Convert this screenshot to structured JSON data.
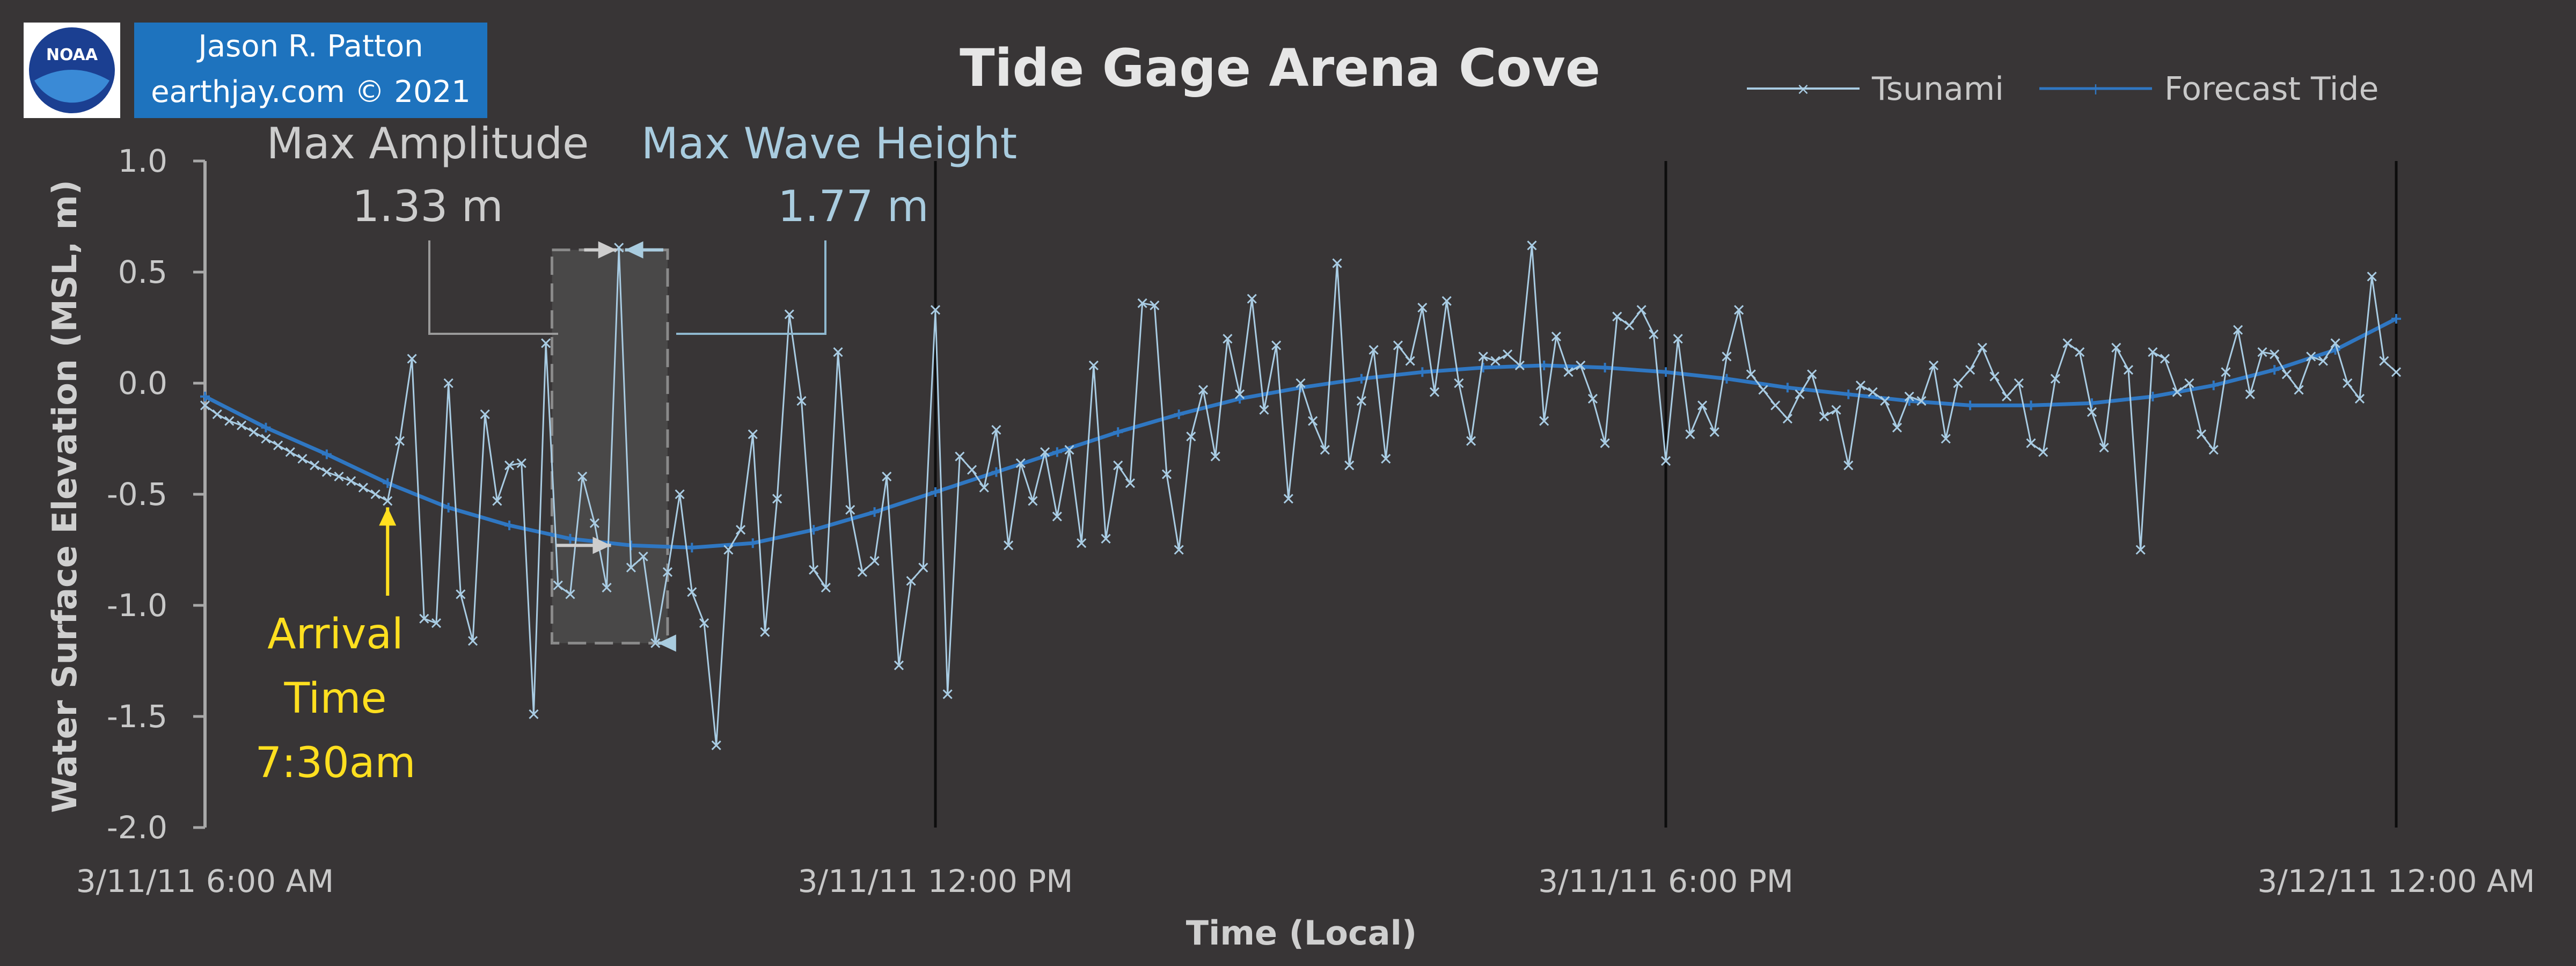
{
  "chart_data": {
    "type": "line",
    "title": "Tide Gage Arena Cove",
    "xlabel": "Time (Local)",
    "ylabel": "Water Surface Elevation (MSL, m)",
    "ylim": [
      -2.0,
      1.0
    ],
    "xlim_hours_from_start": [
      0,
      18
    ],
    "yticks": [
      {
        "value": 1.0,
        "label": "1.0"
      },
      {
        "value": 0.5,
        "label": "0.5"
      },
      {
        "value": 0.0,
        "label": "0.0"
      },
      {
        "value": -0.5,
        "label": "-0.5"
      },
      {
        "value": -1.0,
        "label": "-1.0"
      },
      {
        "value": -1.5,
        "label": "-1.5"
      },
      {
        "value": -2.0,
        "label": "-2.0"
      }
    ],
    "xticks": [
      {
        "hours": 0,
        "label": "3/11/11 6:00 AM"
      },
      {
        "hours": 6,
        "label": "3/11/11 12:00 PM"
      },
      {
        "hours": 12,
        "label": "3/11/11 6:00 PM"
      },
      {
        "hours": 18,
        "label": "3/12/11 12:00 AM"
      }
    ],
    "vertical_gridlines_hours": [
      6,
      12,
      18
    ],
    "legend": {
      "position": "top-right",
      "entries": [
        "Tsunami",
        "Forecast Tide"
      ]
    },
    "series": [
      {
        "name": "Forecast Tide",
        "color": "#2f77c2",
        "marker": "plus",
        "points": [
          [
            0,
            -0.06
          ],
          [
            0.5,
            -0.2
          ],
          [
            1,
            -0.32
          ],
          [
            1.5,
            -0.45
          ],
          [
            2,
            -0.56
          ],
          [
            2.5,
            -0.64
          ],
          [
            3,
            -0.7
          ],
          [
            3.5,
            -0.73
          ],
          [
            4,
            -0.74
          ],
          [
            4.5,
            -0.72
          ],
          [
            5,
            -0.66
          ],
          [
            5.5,
            -0.58
          ],
          [
            6,
            -0.49
          ],
          [
            6.5,
            -0.4
          ],
          [
            7,
            -0.31
          ],
          [
            7.5,
            -0.22
          ],
          [
            8,
            -0.14
          ],
          [
            8.5,
            -0.07
          ],
          [
            9,
            -0.02
          ],
          [
            9.5,
            0.02
          ],
          [
            10,
            0.05
          ],
          [
            10.5,
            0.07
          ],
          [
            11,
            0.08
          ],
          [
            11.5,
            0.07
          ],
          [
            12,
            0.05
          ],
          [
            12.5,
            0.02
          ],
          [
            13,
            -0.02
          ],
          [
            13.5,
            -0.05
          ],
          [
            14,
            -0.08
          ],
          [
            14.5,
            -0.1
          ],
          [
            15,
            -0.1
          ],
          [
            15.5,
            -0.09
          ],
          [
            16,
            -0.06
          ],
          [
            16.5,
            -0.01
          ],
          [
            17,
            0.06
          ],
          [
            17.5,
            0.15
          ],
          [
            18,
            0.29
          ]
        ]
      },
      {
        "name": "Tsunami",
        "color": "#a9cce3",
        "marker": "x",
        "points": [
          [
            0,
            -0.1
          ],
          [
            0.1,
            -0.14
          ],
          [
            0.2,
            -0.17
          ],
          [
            0.3,
            -0.19
          ],
          [
            0.4,
            -0.22
          ],
          [
            0.5,
            -0.25
          ],
          [
            0.6,
            -0.28
          ],
          [
            0.7,
            -0.31
          ],
          [
            0.8,
            -0.34
          ],
          [
            0.9,
            -0.37
          ],
          [
            1,
            -0.4
          ],
          [
            1.1,
            -0.42
          ],
          [
            1.2,
            -0.44
          ],
          [
            1.3,
            -0.47
          ],
          [
            1.4,
            -0.5
          ],
          [
            1.5,
            -0.53
          ],
          [
            1.6,
            -0.26
          ],
          [
            1.7,
            0.11
          ],
          [
            1.8,
            -1.06
          ],
          [
            1.9,
            -1.08
          ],
          [
            2.0,
            0.0
          ],
          [
            2.1,
            -0.95
          ],
          [
            2.2,
            -1.16
          ],
          [
            2.3,
            -0.14
          ],
          [
            2.4,
            -0.53
          ],
          [
            2.5,
            -0.37
          ],
          [
            2.6,
            -0.36
          ],
          [
            2.7,
            -1.49
          ],
          [
            2.8,
            0.18
          ],
          [
            2.9,
            -0.91
          ],
          [
            3.0,
            -0.95
          ],
          [
            3.1,
            -0.42
          ],
          [
            3.2,
            -0.63
          ],
          [
            3.3,
            -0.92
          ],
          [
            3.4,
            0.61
          ],
          [
            3.5,
            -0.83
          ],
          [
            3.6,
            -0.78
          ],
          [
            3.7,
            -1.17
          ],
          [
            3.8,
            -0.85
          ],
          [
            3.9,
            -0.5
          ],
          [
            4.0,
            -0.94
          ],
          [
            4.1,
            -1.08
          ],
          [
            4.2,
            -1.63
          ],
          [
            4.3,
            -0.75
          ],
          [
            4.4,
            -0.66
          ],
          [
            4.5,
            -0.23
          ],
          [
            4.6,
            -1.12
          ],
          [
            4.7,
            -0.52
          ],
          [
            4.8,
            0.31
          ],
          [
            4.9,
            -0.08
          ],
          [
            5.0,
            -0.84
          ],
          [
            5.1,
            -0.92
          ],
          [
            5.2,
            0.14
          ],
          [
            5.3,
            -0.57
          ],
          [
            5.4,
            -0.85
          ],
          [
            5.5,
            -0.8
          ],
          [
            5.6,
            -0.42
          ],
          [
            5.7,
            -1.27
          ],
          [
            5.8,
            -0.89
          ],
          [
            5.9,
            -0.83
          ],
          [
            6.0,
            0.33
          ],
          [
            6.1,
            -1.4
          ],
          [
            6.2,
            -0.33
          ],
          [
            6.3,
            -0.39
          ],
          [
            6.4,
            -0.47
          ],
          [
            6.5,
            -0.21
          ],
          [
            6.6,
            -0.73
          ],
          [
            6.7,
            -0.36
          ],
          [
            6.8,
            -0.53
          ],
          [
            6.9,
            -0.31
          ],
          [
            7.0,
            -0.6
          ],
          [
            7.1,
            -0.3
          ],
          [
            7.2,
            -0.72
          ],
          [
            7.3,
            0.08
          ],
          [
            7.4,
            -0.7
          ],
          [
            7.5,
            -0.37
          ],
          [
            7.6,
            -0.45
          ],
          [
            7.7,
            0.36
          ],
          [
            7.8,
            0.35
          ],
          [
            7.9,
            -0.41
          ],
          [
            8.0,
            -0.75
          ],
          [
            8.1,
            -0.24
          ],
          [
            8.2,
            -0.03
          ],
          [
            8.3,
            -0.33
          ],
          [
            8.4,
            0.2
          ],
          [
            8.5,
            -0.05
          ],
          [
            8.6,
            0.38
          ],
          [
            8.7,
            -0.12
          ],
          [
            8.8,
            0.17
          ],
          [
            8.9,
            -0.52
          ],
          [
            9.0,
            0.0
          ],
          [
            9.1,
            -0.17
          ],
          [
            9.2,
            -0.3
          ],
          [
            9.3,
            0.54
          ],
          [
            9.4,
            -0.37
          ],
          [
            9.5,
            -0.08
          ],
          [
            9.6,
            0.15
          ],
          [
            9.7,
            -0.34
          ],
          [
            9.8,
            0.17
          ],
          [
            9.9,
            0.1
          ],
          [
            10.0,
            0.34
          ],
          [
            10.1,
            -0.04
          ],
          [
            10.2,
            0.37
          ],
          [
            10.3,
            0.0
          ],
          [
            10.4,
            -0.26
          ],
          [
            10.5,
            0.12
          ],
          [
            10.6,
            0.1
          ],
          [
            10.7,
            0.13
          ],
          [
            10.8,
            0.08
          ],
          [
            10.9,
            0.62
          ],
          [
            11.0,
            -0.17
          ],
          [
            11.1,
            0.21
          ],
          [
            11.2,
            0.05
          ],
          [
            11.3,
            0.08
          ],
          [
            11.4,
            -0.07
          ],
          [
            11.5,
            -0.27
          ],
          [
            11.6,
            0.3
          ],
          [
            11.7,
            0.26
          ],
          [
            11.8,
            0.33
          ],
          [
            11.9,
            0.22
          ],
          [
            12.0,
            -0.35
          ],
          [
            12.1,
            0.2
          ],
          [
            12.2,
            -0.23
          ],
          [
            12.3,
            -0.1
          ],
          [
            12.4,
            -0.22
          ],
          [
            12.5,
            0.12
          ],
          [
            12.6,
            0.33
          ],
          [
            12.7,
            0.04
          ],
          [
            12.8,
            -0.03
          ],
          [
            12.9,
            -0.1
          ],
          [
            13.0,
            -0.16
          ],
          [
            13.1,
            -0.05
          ],
          [
            13.2,
            0.04
          ],
          [
            13.3,
            -0.15
          ],
          [
            13.4,
            -0.12
          ],
          [
            13.5,
            -0.37
          ],
          [
            13.6,
            -0.01
          ],
          [
            13.7,
            -0.04
          ],
          [
            13.8,
            -0.08
          ],
          [
            13.9,
            -0.2
          ],
          [
            14.0,
            -0.06
          ],
          [
            14.1,
            -0.08
          ],
          [
            14.2,
            0.08
          ],
          [
            14.3,
            -0.25
          ],
          [
            14.4,
            0.0
          ],
          [
            14.5,
            0.06
          ],
          [
            14.6,
            0.16
          ],
          [
            14.7,
            0.03
          ],
          [
            14.8,
            -0.06
          ],
          [
            14.9,
            0.0
          ],
          [
            15.0,
            -0.27
          ],
          [
            15.1,
            -0.31
          ],
          [
            15.2,
            0.02
          ],
          [
            15.3,
            0.18
          ],
          [
            15.4,
            0.14
          ],
          [
            15.5,
            -0.13
          ],
          [
            15.6,
            -0.29
          ],
          [
            15.7,
            0.16
          ],
          [
            15.8,
            0.06
          ],
          [
            15.9,
            -0.75
          ],
          [
            16.0,
            0.14
          ],
          [
            16.1,
            0.11
          ],
          [
            16.2,
            -0.04
          ],
          [
            16.3,
            0.0
          ],
          [
            16.4,
            -0.23
          ],
          [
            16.5,
            -0.3
          ],
          [
            16.6,
            0.05
          ],
          [
            16.7,
            0.24
          ],
          [
            16.8,
            -0.05
          ],
          [
            16.9,
            0.14
          ],
          [
            17.0,
            0.13
          ],
          [
            17.1,
            0.04
          ],
          [
            17.2,
            -0.03
          ],
          [
            17.3,
            0.12
          ],
          [
            17.4,
            0.1
          ],
          [
            17.5,
            0.18
          ],
          [
            17.6,
            0.0
          ],
          [
            17.7,
            -0.07
          ],
          [
            17.8,
            0.48
          ],
          [
            17.9,
            0.1
          ],
          [
            18.0,
            0.05
          ]
        ]
      }
    ],
    "annotations": {
      "max_amplitude_label": "Max Amplitude",
      "max_amplitude_value": "1.33 m",
      "max_amplitude_m": 1.33,
      "max_wave_height_label": "Max Wave Height",
      "max_wave_height_value": "1.77 m",
      "max_wave_height_m": 1.77,
      "arrival_line1": "Arrival",
      "arrival_line2": "Time",
      "arrival_line3": "7:30am",
      "arrival_hours": 1.5,
      "highlight_window_hours": [
        2.85,
        3.8
      ],
      "wave_peak_m": 0.6,
      "wave_trough_m": -1.17,
      "colors": {
        "gray": "#cdcdcd",
        "blue": "#a9ccdf",
        "yellow": "#ffdf1f",
        "highlight_fill": "#4a4a4a"
      }
    }
  },
  "credit": {
    "author": "Jason R. Patton",
    "site": "earthjay.com © 2021",
    "logo_text": "NOAA",
    "background": "#1e73be"
  }
}
